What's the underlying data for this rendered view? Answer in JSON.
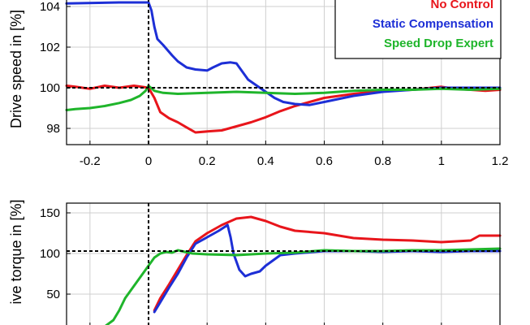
{
  "chart_data": [
    {
      "type": "line",
      "ylabel": "Drive speed in [%]",
      "xlim": [
        -0.28,
        1.2
      ],
      "ylim": [
        97.2,
        104.4
      ],
      "xticks": [
        -0.2,
        0,
        0.2,
        0.4,
        0.6,
        0.8,
        1,
        1.2
      ],
      "xtick_labels": [
        "-0.2",
        "0",
        "0.2",
        "0.4",
        "0.6",
        "0.8",
        "1",
        "1.2"
      ],
      "yticks": [
        98,
        100,
        102,
        104
      ],
      "ytick_labels": [
        "98",
        "100",
        "102",
        "104"
      ],
      "grid": true,
      "reference_lines": {
        "x": 0,
        "y": 100
      },
      "legend": {
        "placement": "top-right",
        "entries": [
          {
            "name": "No Control",
            "color": "#e8151b"
          },
          {
            "name": "Static Compensation",
            "color": "#1d2fd6"
          },
          {
            "name": "Speed Drop Expert",
            "color": "#1fb52b"
          }
        ]
      },
      "series": [
        {
          "name": "No Control",
          "color": "#e8151b",
          "x": [
            -0.28,
            -0.25,
            -0.2,
            -0.15,
            -0.1,
            -0.05,
            0,
            0.02,
            0.04,
            0.07,
            0.1,
            0.13,
            0.16,
            0.2,
            0.25,
            0.3,
            0.35,
            0.4,
            0.45,
            0.5,
            0.55,
            0.6,
            0.7,
            0.8,
            0.9,
            1.0,
            1.05,
            1.1,
            1.15,
            1.2
          ],
          "y": [
            100.1,
            100.05,
            99.95,
            100.1,
            100.0,
            100.1,
            100.0,
            99.5,
            98.8,
            98.5,
            98.3,
            98.05,
            97.8,
            97.85,
            97.9,
            98.1,
            98.3,
            98.55,
            98.85,
            99.1,
            99.3,
            99.5,
            99.7,
            99.85,
            99.9,
            100.05,
            99.95,
            99.9,
            99.85,
            99.9
          ]
        },
        {
          "name": "Static Compensation",
          "color": "#1d2fd6",
          "x": [
            -0.28,
            -0.1,
            0.0,
            0.01,
            0.02,
            0.03,
            0.05,
            0.08,
            0.1,
            0.13,
            0.16,
            0.2,
            0.22,
            0.25,
            0.28,
            0.3,
            0.32,
            0.34,
            0.37,
            0.4,
            0.43,
            0.46,
            0.5,
            0.55,
            0.6,
            0.7,
            0.8,
            0.9,
            1.0,
            1.2
          ],
          "y": [
            104.15,
            104.2,
            104.2,
            103.8,
            103.0,
            102.4,
            102.1,
            101.6,
            101.3,
            101.0,
            100.9,
            100.85,
            101.0,
            101.2,
            101.25,
            101.2,
            100.8,
            100.4,
            100.1,
            99.8,
            99.5,
            99.3,
            99.2,
            99.15,
            99.3,
            99.6,
            99.8,
            99.9,
            100.0,
            100.0
          ]
        },
        {
          "name": "Speed Drop Expert",
          "color": "#1fb52b",
          "x": [
            -0.28,
            -0.25,
            -0.2,
            -0.15,
            -0.1,
            -0.06,
            -0.03,
            -0.01,
            0.0,
            0.02,
            0.05,
            0.1,
            0.2,
            0.3,
            0.4,
            0.5,
            0.6,
            0.7,
            0.8,
            0.9,
            1.0,
            1.1,
            1.2
          ],
          "y": [
            98.9,
            98.95,
            99.0,
            99.1,
            99.25,
            99.4,
            99.6,
            99.85,
            100.1,
            99.85,
            99.75,
            99.7,
            99.75,
            99.8,
            99.75,
            99.7,
            99.75,
            99.85,
            99.9,
            99.9,
            99.95,
            99.9,
            99.95
          ]
        }
      ]
    },
    {
      "type": "line",
      "ylabel": "ive torque in [%]",
      "xlim": [
        -0.28,
        1.2
      ],
      "ylim": [
        10,
        162
      ],
      "xticks": [
        -0.2,
        0,
        0.2,
        0.4,
        0.6,
        0.8,
        1,
        1.2
      ],
      "yticks": [
        50,
        100,
        150
      ],
      "ytick_labels": [
        "50",
        "100",
        "150"
      ],
      "grid": true,
      "reference_lines": {
        "x": 0,
        "y": 103
      },
      "series": [
        {
          "name": "No Control",
          "color": "#e8151b",
          "x": [
            0.02,
            0.04,
            0.07,
            0.1,
            0.13,
            0.16,
            0.2,
            0.25,
            0.3,
            0.35,
            0.4,
            0.45,
            0.5,
            0.6,
            0.7,
            0.8,
            0.9,
            1.0,
            1.05,
            1.1,
            1.13,
            1.2
          ],
          "y": [
            30,
            45,
            62,
            80,
            98,
            115,
            125,
            135,
            143,
            145,
            140,
            133,
            128,
            125,
            119,
            117,
            116,
            114,
            115,
            116,
            122,
            122
          ]
        },
        {
          "name": "Static Compensation",
          "color": "#1d2fd6",
          "x": [
            0.02,
            0.04,
            0.07,
            0.1,
            0.13,
            0.16,
            0.2,
            0.24,
            0.27,
            0.28,
            0.29,
            0.31,
            0.33,
            0.35,
            0.38,
            0.4,
            0.45,
            0.5,
            0.6,
            0.7,
            0.8,
            0.9,
            1.0,
            1.1,
            1.2
          ],
          "y": [
            28,
            40,
            58,
            75,
            95,
            112,
            120,
            128,
            135,
            120,
            100,
            80,
            72,
            75,
            78,
            85,
            98,
            100,
            103,
            103,
            102,
            103,
            102,
            103,
            103
          ]
        },
        {
          "name": "Speed Drop Expert",
          "color": "#1fb52b",
          "x": [
            -0.15,
            -0.12,
            -0.1,
            -0.08,
            -0.06,
            -0.04,
            -0.02,
            0.0,
            0.02,
            0.04,
            0.06,
            0.08,
            0.1,
            0.15,
            0.2,
            0.3,
            0.4,
            0.5,
            0.6,
            0.7,
            0.8,
            0.9,
            1.0,
            1.1,
            1.2
          ],
          "y": [
            10,
            18,
            30,
            45,
            55,
            65,
            75,
            85,
            95,
            100,
            102,
            101,
            104,
            100,
            99,
            98,
            100,
            101,
            104,
            103,
            103,
            104,
            104,
            105,
            106
          ]
        }
      ]
    }
  ]
}
